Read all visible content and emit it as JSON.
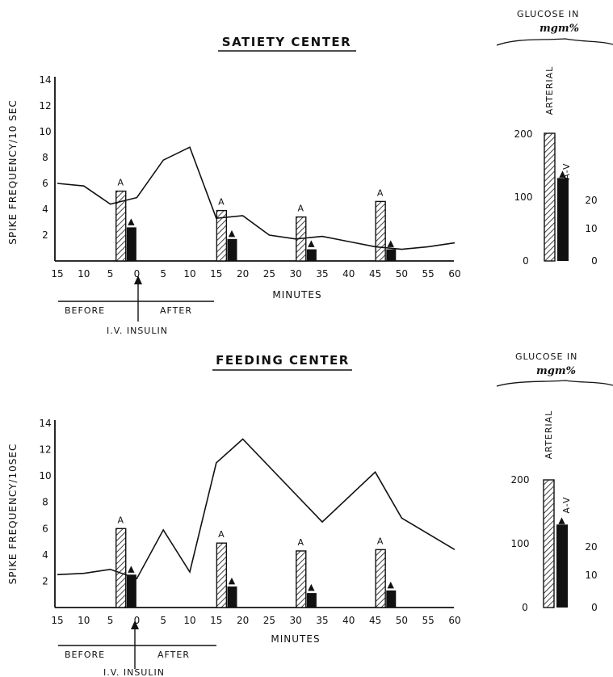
{
  "colors": {
    "ink": "#111111",
    "paper": "#ffffff"
  },
  "chart_data": [
    {
      "type": "bar",
      "title": "SATIETY CENTER",
      "ylabel": "SPIKE FREQUENCY/10 SEC",
      "xlabel": "MINUTES",
      "x_ticks": [
        "15",
        "10",
        "5",
        "0",
        "5",
        "10",
        "15",
        "20",
        "25",
        "30",
        "35",
        "40",
        "45",
        "50",
        "55",
        "60"
      ],
      "y_ticks": [
        2,
        4,
        6,
        8,
        10,
        12,
        14
      ],
      "ylim": [
        0,
        14
      ],
      "xlim": [
        -15,
        60
      ],
      "line_x": [
        -15,
        -10,
        -5,
        0,
        5,
        10,
        15,
        20,
        25,
        30,
        35,
        40,
        45,
        50,
        55,
        60
      ],
      "line_y": [
        6.0,
        5.8,
        4.4,
        4.9,
        7.8,
        8.8,
        3.3,
        3.5,
        2.0,
        1.7,
        1.9,
        1.5,
        1.1,
        0.9,
        1.1,
        1.4
      ],
      "series": [
        {
          "name": "A",
          "x": [
            -3,
            16,
            31,
            46
          ],
          "values": [
            5.4,
            3.9,
            3.4,
            4.6
          ]
        },
        {
          "name": "▲",
          "x": [
            -1,
            18,
            33,
            48
          ],
          "values": [
            2.6,
            1.7,
            0.9,
            0.9
          ]
        }
      ],
      "annotation": {
        "before": "BEFORE",
        "after": "AFTER",
        "injection": "I.V. INSULIN"
      },
      "glucose": {
        "heading": "GLUCOSE IN",
        "unit": "mgm%",
        "arterial_label": "ARTERIAL",
        "av_label": "A-V",
        "av_marker": "▲",
        "left_ticks": [
          "200",
          "100",
          "0"
        ],
        "right_ticks": [
          "20",
          "10",
          "0"
        ],
        "arterial_value": 200,
        "av_value": 13
      }
    },
    {
      "type": "bar",
      "title": "FEEDING CENTER",
      "ylabel": "SPIKE FREQUENCY/10SEC",
      "xlabel": "MINUTES",
      "x_ticks": [
        "15",
        "10",
        "5",
        "0",
        "5",
        "10",
        "15",
        "20",
        "25",
        "30",
        "35",
        "40",
        "45",
        "50",
        "55",
        "60"
      ],
      "y_ticks": [
        2,
        4,
        6,
        8,
        10,
        12,
        14
      ],
      "ylim": [
        0,
        14
      ],
      "xlim": [
        -15,
        60
      ],
      "line_x": [
        -15,
        -10,
        -5,
        0,
        5,
        10,
        15,
        20,
        35,
        45,
        50,
        60
      ],
      "line_y": [
        2.5,
        2.6,
        2.9,
        2.2,
        5.9,
        2.7,
        11.0,
        12.8,
        6.5,
        10.3,
        6.8,
        4.4
      ],
      "series": [
        {
          "name": "A",
          "x": [
            -3,
            16,
            31,
            46
          ],
          "values": [
            6.0,
            4.9,
            4.3,
            4.4
          ]
        },
        {
          "name": "▲",
          "x": [
            -1,
            18,
            33,
            48
          ],
          "values": [
            2.5,
            1.6,
            1.1,
            1.3
          ]
        }
      ],
      "annotation": {
        "before": "BEFORE",
        "after": "AFTER",
        "injection": "I.V. INSULIN"
      },
      "glucose": {
        "heading": "GLUCOSE IN",
        "unit": "mgm%",
        "arterial_label": "ARTERIAL",
        "av_label": "A-V",
        "av_marker": "▲",
        "left_ticks": [
          "200",
          "100",
          "0"
        ],
        "right_ticks": [
          "20",
          "10",
          "0"
        ],
        "arterial_value": 200,
        "av_value": 13
      }
    }
  ]
}
